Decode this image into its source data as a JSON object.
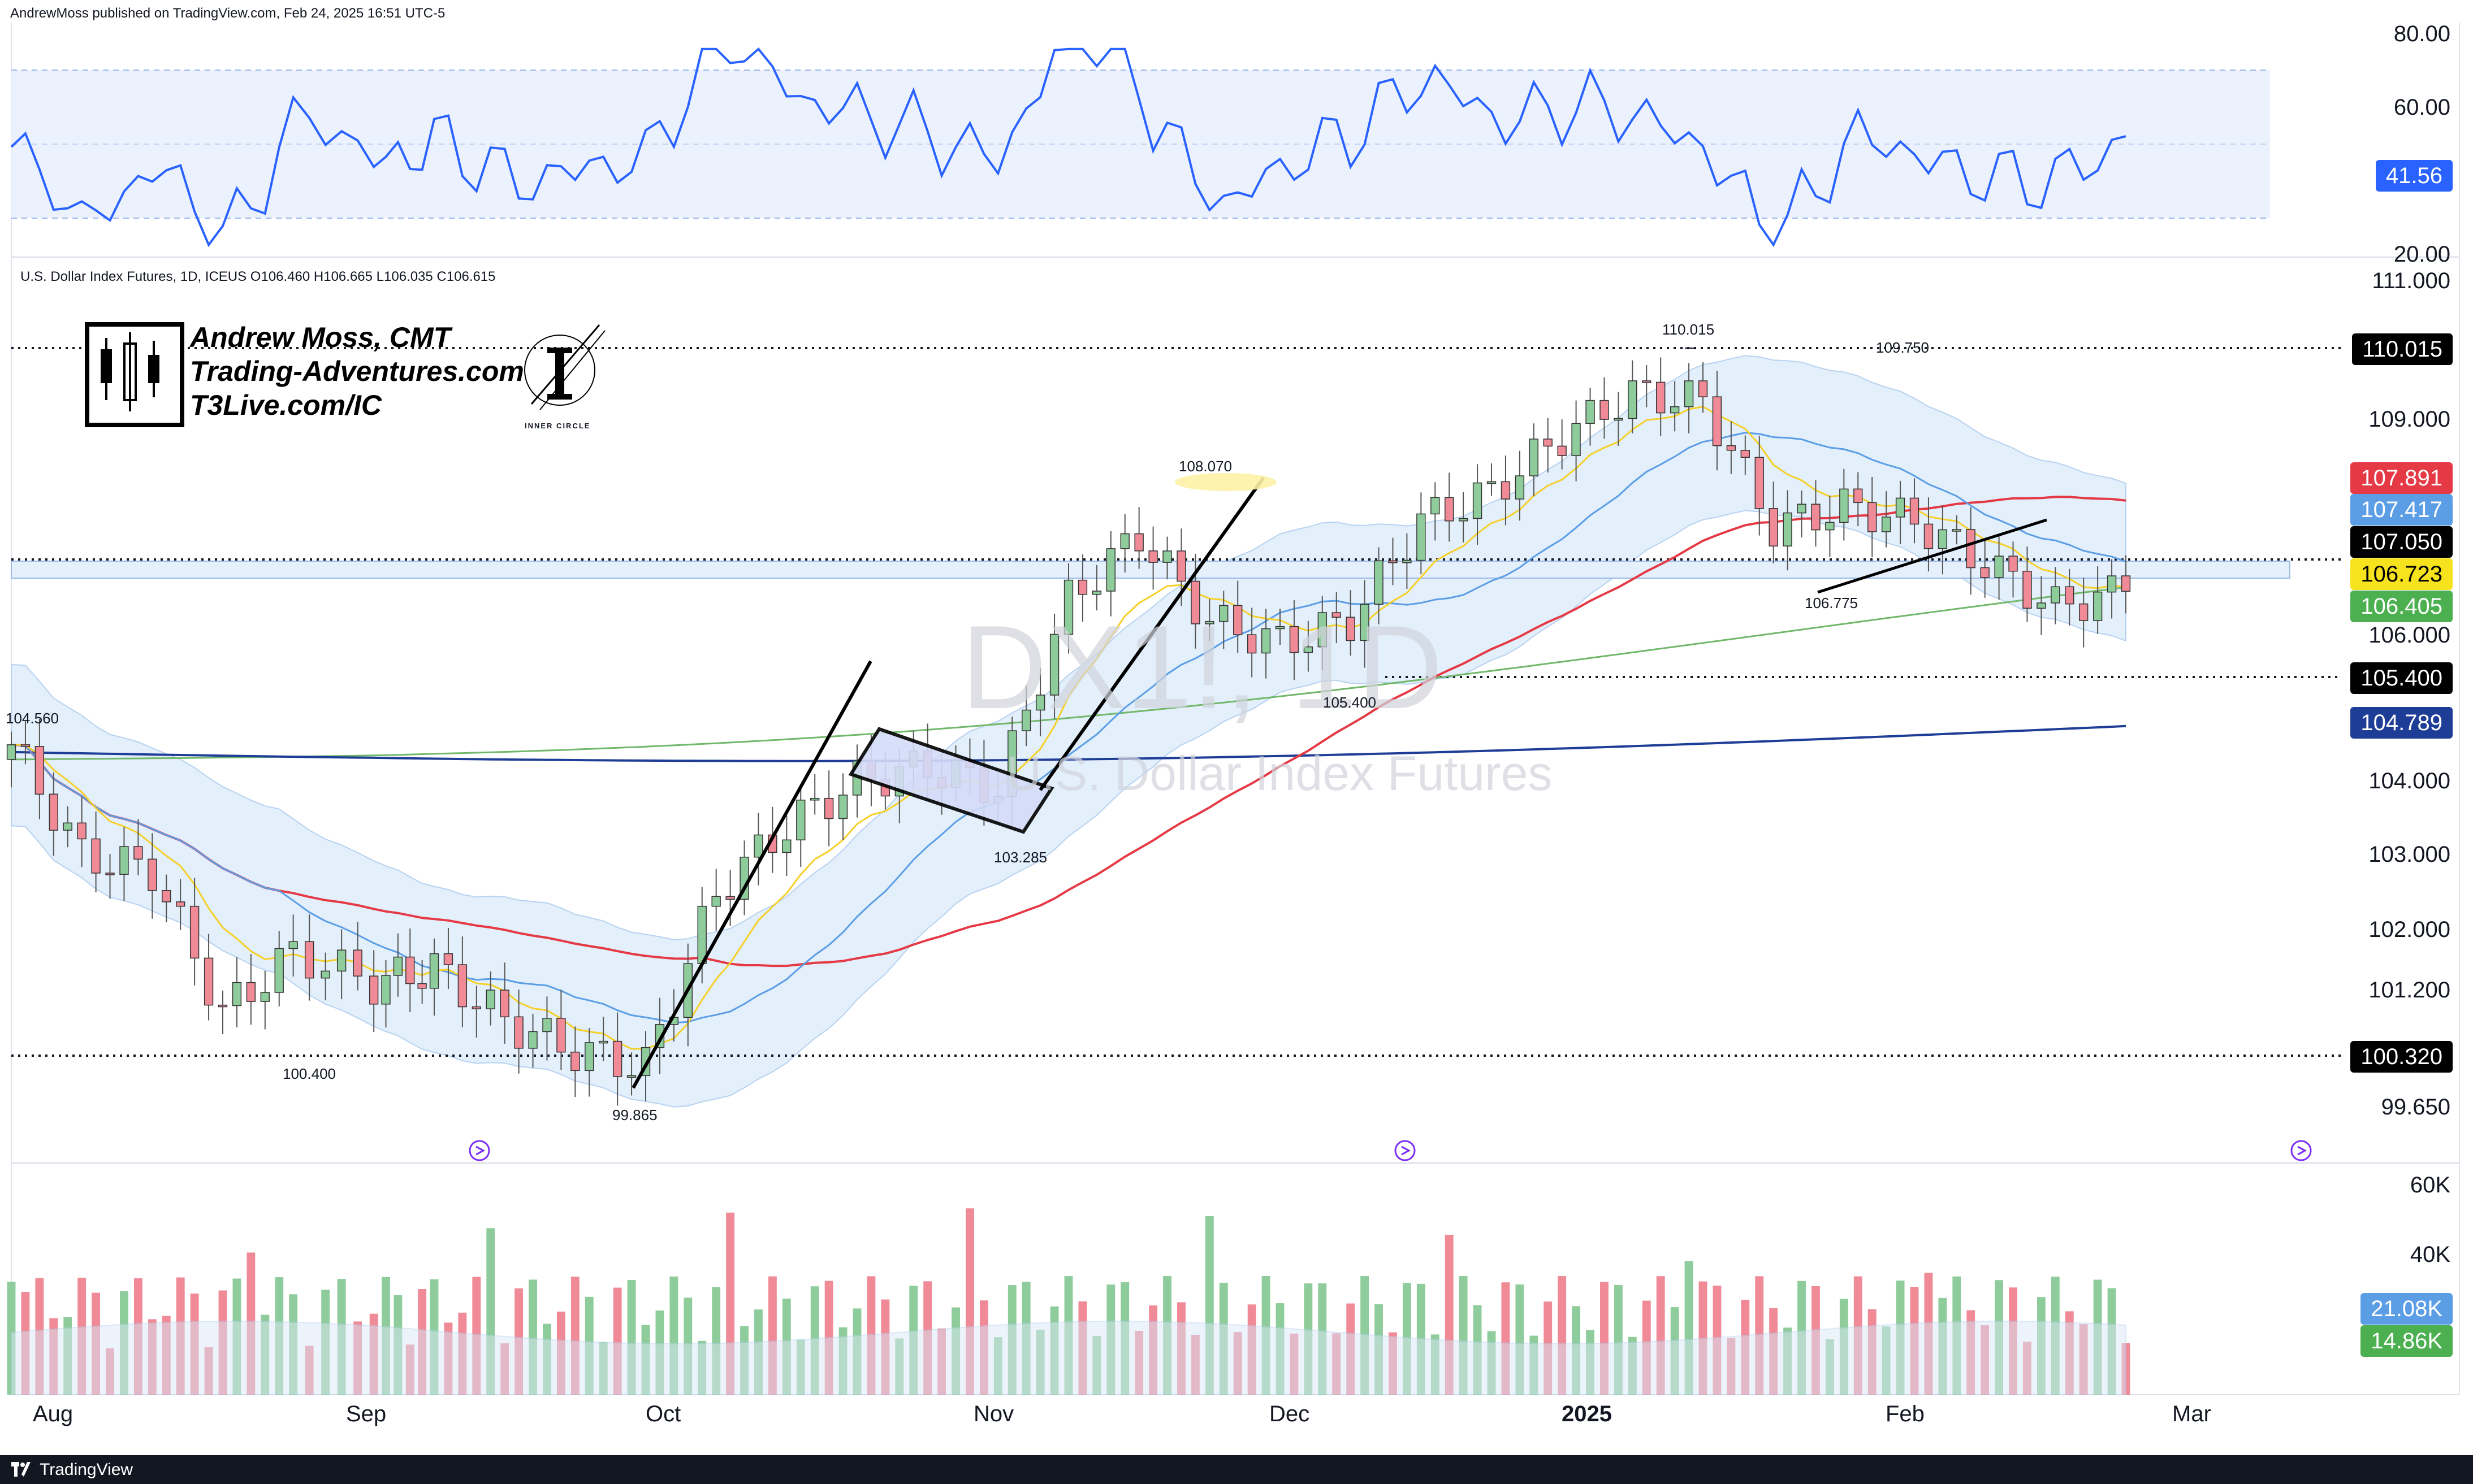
{
  "publish_line": "AndrewMoss published on TradingView.com, Feb 24, 2025 16:51 UTC-5",
  "symbol_line": "U.S. Dollar Index Futures, 1D, ICEUS  O106.460  H106.665  L106.035  C106.615",
  "brand": {
    "name": "Andrew Moss, CMT",
    "site": "Trading-Adventures.com",
    "link": "T3Live.com/IC",
    "inner_circle": "INNER CIRCLE"
  },
  "watermark": {
    "symbol": "DX1!, 1D",
    "name": "U.S. Dollar Index Futures"
  },
  "footer": {
    "brand": "TradingView",
    "icon": "tradingview-logo-icon"
  },
  "colors": {
    "up": "#8fcc9b",
    "down": "#ef8a96",
    "ema9": "#f5d02a",
    "sma20": "#5c9ee6",
    "sma50": "#e53945",
    "sma100": "#71b86b",
    "sma200": "#1e3d96",
    "rsi": "#2962ff",
    "bollinger_fill": "#e3effb"
  },
  "rsi_axis": {
    "ticks": [
      "80.00",
      "60.00",
      "20.00"
    ],
    "value_tag": "41.56"
  },
  "price_axis": {
    "ticks": [
      "111.000",
      "109.000",
      "106.000",
      "104.000",
      "103.000",
      "102.000",
      "101.200",
      "99.650"
    ],
    "tags": [
      {
        "label": "110.015",
        "kind": "black"
      },
      {
        "label": "107.891",
        "kind": "red"
      },
      {
        "label": "107.417",
        "kind": "blue"
      },
      {
        "label": "107.050",
        "kind": "black"
      },
      {
        "label": "106.723",
        "kind": "yellow"
      },
      {
        "label": "106.405",
        "kind": "green"
      },
      {
        "label": "105.400",
        "kind": "black"
      },
      {
        "label": "104.789",
        "kind": "navy"
      },
      {
        "label": "100.320",
        "kind": "black"
      }
    ]
  },
  "volume_axis": {
    "ticks": [
      "60K",
      "40K"
    ],
    "tags": [
      "21.08K",
      "14.86K"
    ]
  },
  "annotations": [
    "104.560",
    "100.400",
    "99.865",
    "103.285",
    "108.070",
    "105.400",
    "110.015",
    "109.750",
    "106.775"
  ],
  "months": [
    "Aug",
    "Sep",
    "Oct",
    "Nov",
    "Dec",
    "2025",
    "Feb",
    "Mar"
  ],
  "chart_data": {
    "type": "candlestick",
    "title": "U.S. Dollar Index Futures, 1D, ICEUS",
    "ohlc_last": {
      "open": 106.46,
      "high": 106.665,
      "low": 106.035,
      "close": 106.615
    },
    "x_range": [
      "2024-07-29",
      "2025-02-24"
    ],
    "ylim": [
      99.3,
      111.2
    ],
    "log_scale": true,
    "candles_close_points": [
      {
        "date": "2024-07-29",
        "close": 104.5
      },
      {
        "date": "2024-08-05",
        "close": 103.0
      },
      {
        "date": "2024-08-12",
        "close": 102.8
      },
      {
        "date": "2024-08-19",
        "close": 100.9
      },
      {
        "date": "2024-08-26",
        "close": 101.7
      },
      {
        "date": "2024-09-03",
        "close": 101.3
      },
      {
        "date": "2024-09-09",
        "close": 101.5
      },
      {
        "date": "2024-09-16",
        "close": 100.8
      },
      {
        "date": "2024-09-23",
        "close": 100.4
      },
      {
        "date": "2024-09-30",
        "close": 100.2
      },
      {
        "date": "2024-10-07",
        "close": 102.5
      },
      {
        "date": "2024-10-14",
        "close": 103.4
      },
      {
        "date": "2024-10-21",
        "close": 104.0
      },
      {
        "date": "2024-10-28",
        "close": 104.2
      },
      {
        "date": "2024-11-04",
        "close": 103.9
      },
      {
        "date": "2024-11-11",
        "close": 106.5
      },
      {
        "date": "2024-11-18",
        "close": 107.4
      },
      {
        "date": "2024-11-25",
        "close": 106.2
      },
      {
        "date": "2024-12-02",
        "close": 105.9
      },
      {
        "date": "2024-12-09",
        "close": 106.2
      },
      {
        "date": "2024-12-16",
        "close": 107.6
      },
      {
        "date": "2024-12-23",
        "close": 108.0
      },
      {
        "date": "2024-12-30",
        "close": 108.8
      },
      {
        "date": "2025-01-06",
        "close": 109.4
      },
      {
        "date": "2025-01-13",
        "close": 109.3
      },
      {
        "date": "2025-01-20",
        "close": 107.5
      },
      {
        "date": "2025-01-27",
        "close": 107.8
      },
      {
        "date": "2025-02-03",
        "close": 107.6
      },
      {
        "date": "2025-02-10",
        "close": 107.0
      },
      {
        "date": "2025-02-17",
        "close": 106.4
      },
      {
        "date": "2025-02-24",
        "close": 106.615
      }
    ],
    "moving_averages": [
      {
        "label": "107.891",
        "color": "#e53945",
        "last": 107.891
      },
      {
        "label": "107.417",
        "color": "#5c9ee6",
        "last": 107.417
      },
      {
        "label": "106.723",
        "color": "#f5d02a",
        "last": 106.723
      },
      {
        "label": "106.405",
        "color": "#71b86b",
        "last": 106.405
      },
      {
        "label": "104.789",
        "color": "#1e3d96",
        "last": 104.789
      }
    ],
    "horizontal_levels": [
      110.015,
      107.05,
      105.4,
      100.32
    ],
    "rsi": {
      "last": 41.56,
      "band": [
        30,
        70
      ],
      "ylim": [
        20,
        80
      ]
    },
    "volume": {
      "last_values": [
        "21.08K",
        "14.86K"
      ],
      "ylim": [
        0,
        65000
      ]
    }
  }
}
